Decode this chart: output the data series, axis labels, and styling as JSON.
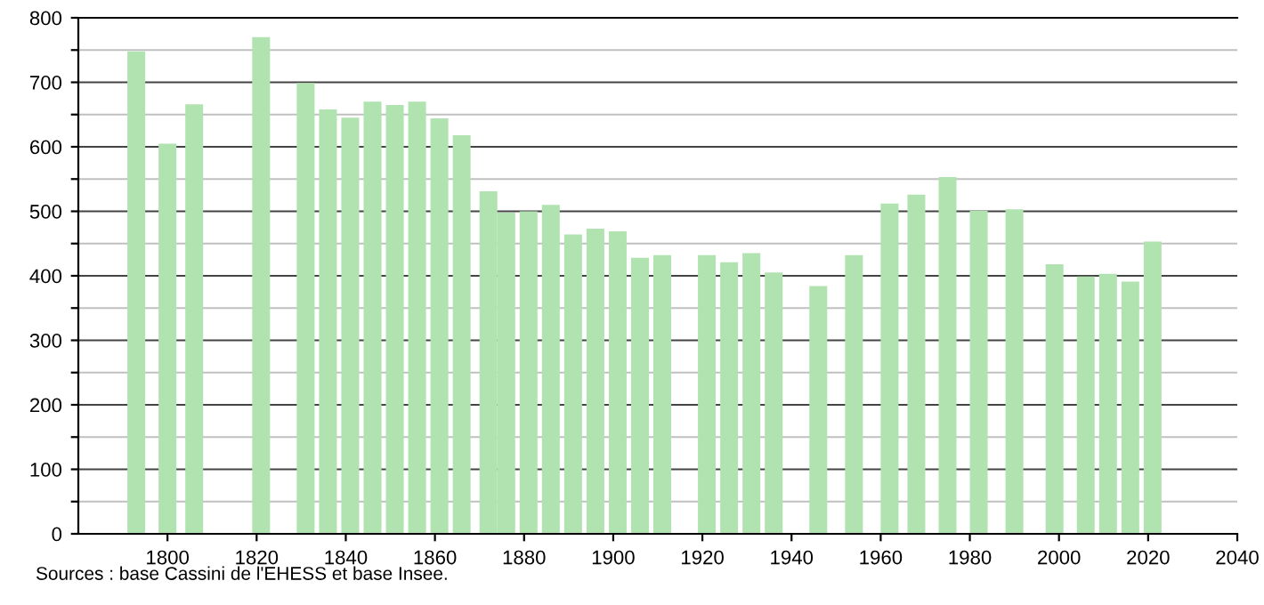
{
  "chart_data": {
    "type": "bar",
    "x": [
      1793,
      1800,
      1806,
      1821,
      1831,
      1836,
      1841,
      1846,
      1851,
      1856,
      1861,
      1866,
      1872,
      1876,
      1881,
      1886,
      1891,
      1896,
      1901,
      1906,
      1911,
      1921,
      1926,
      1931,
      1936,
      1946,
      1954,
      1962,
      1968,
      1975,
      1982,
      1990,
      1999,
      2006,
      2011,
      2016,
      2021
    ],
    "values": [
      748,
      605,
      666,
      770,
      699,
      658,
      645,
      670,
      665,
      670,
      644,
      618,
      531,
      498,
      500,
      510,
      464,
      473,
      469,
      428,
      432,
      432,
      421,
      435,
      405,
      384,
      432,
      512,
      526,
      553,
      501,
      503,
      418,
      399,
      403,
      391,
      453
    ],
    "color": "#b1e3b1",
    "xlim": [
      1780,
      2040
    ],
    "xticks": [
      1800,
      1820,
      1840,
      1860,
      1880,
      1900,
      1920,
      1940,
      1960,
      1980,
      2000,
      2020,
      2040
    ],
    "ylim": [
      0,
      800
    ],
    "yticks": [
      0,
      {
        "value": 50,
        "label": null
      },
      100,
      {
        "value": 150,
        "label": null
      },
      200,
      {
        "value": 250,
        "label": null
      },
      300,
      {
        "value": 350,
        "label": null
      },
      400,
      {
        "value": 450,
        "label": null
      },
      500,
      {
        "value": 550,
        "label": null
      },
      600,
      {
        "value": 650,
        "label": null
      },
      700,
      {
        "value": 750,
        "label": null
      },
      800
    ],
    "grid": "y",
    "annotations": [
      "Sources : base Cassini de l'EHESS et base Insee."
    ]
  }
}
